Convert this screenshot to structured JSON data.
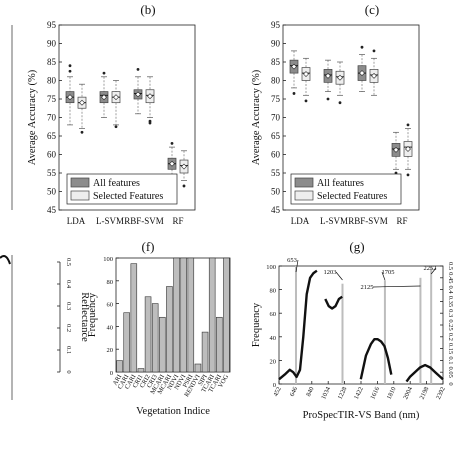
{
  "panels": {
    "b": "(b)",
    "c": "(c)",
    "f": "(f)",
    "g": "(g)"
  },
  "chart_data": [
    {
      "type": "box",
      "panel": "(b)",
      "ylabel": "Average Accuracy (%)",
      "ylim": [
        45,
        95
      ],
      "yticks": [
        "45",
        "50",
        "55",
        "60",
        "65",
        "70",
        "75",
        "80",
        "85",
        "90",
        "95"
      ],
      "categories": [
        "LDA",
        "L-SVM",
        "RBF-SVM",
        "RF"
      ],
      "legend": [
        "All features",
        "Selected Features"
      ],
      "series": [
        {
          "name": "All features",
          "color": "#8c8c8c",
          "boxes": [
            {
              "min": 68,
              "q1": 74,
              "median": 75.5,
              "q3": 77,
              "max": 81,
              "outliers": [
                82.5,
                84
              ]
            },
            {
              "min": 70,
              "q1": 74,
              "median": 76,
              "q3": 77,
              "max": 81,
              "outliers": [
                82
              ]
            },
            {
              "min": 71,
              "q1": 75,
              "median": 76.5,
              "q3": 77.5,
              "max": 81,
              "outliers": [
                83
              ]
            },
            {
              "min": 54,
              "q1": 56,
              "median": 57.5,
              "q3": 59,
              "max": 62,
              "outliers": [
                63
              ]
            }
          ]
        },
        {
          "name": "Selected Features",
          "color": "#eeeeee",
          "boxes": [
            {
              "min": 67,
              "q1": 72.5,
              "median": 74,
              "q3": 75.5,
              "max": 79,
              "outliers": [
                66
              ]
            },
            {
              "min": 68,
              "q1": 74,
              "median": 75.5,
              "q3": 77,
              "max": 80,
              "outliers": [
                67.5
              ]
            },
            {
              "min": 70,
              "q1": 74,
              "median": 76,
              "q3": 77.5,
              "max": 81,
              "outliers": [
                69,
                68.5
              ]
            },
            {
              "min": 53,
              "q1": 55,
              "median": 57,
              "q3": 58.5,
              "max": 61,
              "outliers": [
                51.5
              ]
            }
          ]
        }
      ]
    },
    {
      "type": "box",
      "panel": "(c)",
      "ylabel": "Average Accuracy (%)",
      "ylim": [
        45,
        95
      ],
      "yticks": [
        "45",
        "50",
        "55",
        "60",
        "65",
        "70",
        "75",
        "80",
        "85",
        "90",
        "95"
      ],
      "categories": [
        "LDA",
        "L-SVM",
        "RBF-SVM",
        "RF"
      ],
      "legend": [
        "All features",
        "Selected Features"
      ],
      "series": [
        {
          "name": "All features",
          "color": "#8c8c8c",
          "boxes": [
            {
              "min": 78,
              "q1": 82,
              "median": 84,
              "q3": 85.5,
              "max": 88,
              "outliers": [
                76.5
              ]
            },
            {
              "min": 77,
              "q1": 79.5,
              "median": 81.5,
              "q3": 83,
              "max": 85.5,
              "outliers": [
                75
              ]
            },
            {
              "min": 77,
              "q1": 80,
              "median": 82,
              "q3": 84,
              "max": 87,
              "outliers": [
                89
              ]
            },
            {
              "min": 56,
              "q1": 59.5,
              "median": 61.5,
              "q3": 63,
              "max": 66,
              "outliers": [
                55
              ]
            }
          ]
        },
        {
          "name": "Selected Features",
          "color": "#eeeeee",
          "boxes": [
            {
              "min": 76,
              "q1": 80,
              "median": 82,
              "q3": 83.5,
              "max": 86,
              "outliers": [
                74.5
              ]
            },
            {
              "min": 76,
              "q1": 79,
              "median": 81,
              "q3": 82.5,
              "max": 85,
              "outliers": [
                74
              ]
            },
            {
              "min": 76,
              "q1": 79.5,
              "median": 81.5,
              "q3": 83,
              "max": 86,
              "outliers": [
                88
              ]
            },
            {
              "min": 56,
              "q1": 59.5,
              "median": 62,
              "q3": 63.5,
              "max": 67,
              "outliers": [
                68,
                54.5
              ]
            }
          ]
        }
      ]
    },
    {
      "type": "bar",
      "panel": "(f)",
      "xlabel": "Vegetation Indice",
      "ylabel": "Frequency",
      "ylim": [
        0,
        100
      ],
      "yticks": [
        "0",
        "20",
        "40",
        "60",
        "80",
        "100"
      ],
      "categories": [
        "ARI",
        "CARI",
        "CARI",
        "CRI1",
        "CRI2",
        "CRI3",
        "MCARI",
        "MCARI",
        "NDVI",
        "NDVI",
        "PSRI",
        "RENDVI",
        "SIPI",
        "TCARI",
        "TCARI",
        "VOG"
      ],
      "values": [
        10,
        52,
        95,
        3,
        66,
        60,
        48,
        75,
        100,
        100,
        100,
        7,
        35,
        100,
        48,
        100
      ],
      "y2label": "Reflectance",
      "y2ticks": [
        "0",
        "0.1",
        "0.2",
        "0.3",
        "0.4",
        "0.5"
      ]
    },
    {
      "type": "line",
      "panel": "(g)",
      "xlabel": "ProSpecTIR-VS Band (nm)",
      "ylabel": "Frequency",
      "ylim": [
        0,
        100
      ],
      "yticks": [
        "0",
        "20",
        "40",
        "60",
        "80",
        "100"
      ],
      "y2ticks": [
        "0",
        "0.05",
        "0.1",
        "0.15",
        "0.2",
        "0.25",
        "0.3",
        "0.35",
        "0.4",
        "0.45",
        "0.5"
      ],
      "xticks": [
        "452",
        "646",
        "840",
        "1034",
        "1228",
        "1422",
        "1616",
        "1810",
        "2004",
        "2198",
        "2392"
      ],
      "xlim": [
        452,
        2392
      ],
      "annotations": [
        "653",
        "1203",
        "1705",
        "2125",
        "2252"
      ],
      "spikes": [
        {
          "x": 653,
          "y": 100
        },
        {
          "x": 1203,
          "y": 85
        },
        {
          "x": 1705,
          "y": 88
        },
        {
          "x": 2125,
          "y": 90
        },
        {
          "x": 2252,
          "y": 100
        }
      ],
      "reflectance": [
        [
          [
            452,
            0.02
          ],
          [
            520,
            0.04
          ],
          [
            580,
            0.06
          ],
          [
            620,
            0.05
          ],
          [
            660,
            0.03
          ],
          [
            700,
            0.06
          ],
          [
            740,
            0.2
          ],
          [
            780,
            0.38
          ],
          [
            820,
            0.45
          ],
          [
            860,
            0.47
          ],
          [
            900,
            0.48
          ]
        ],
        [
          [
            1000,
            0.36
          ],
          [
            1040,
            0.33
          ],
          [
            1080,
            0.32
          ],
          [
            1120,
            0.33
          ],
          [
            1160,
            0.36
          ],
          [
            1200,
            0.37
          ]
        ],
        [
          [
            1420,
            0.02
          ],
          [
            1480,
            0.12
          ],
          [
            1540,
            0.17
          ],
          [
            1580,
            0.19
          ],
          [
            1620,
            0.19
          ],
          [
            1660,
            0.18
          ],
          [
            1700,
            0.16
          ],
          [
            1740,
            0.11
          ],
          [
            1780,
            0.04
          ]
        ],
        [
          [
            1960,
            0.01
          ],
          [
            2000,
            0.03
          ],
          [
            2060,
            0.05
          ],
          [
            2120,
            0.07
          ],
          [
            2180,
            0.08
          ],
          [
            2240,
            0.07
          ],
          [
            2300,
            0.05
          ],
          [
            2360,
            0.03
          ],
          [
            2392,
            0.02
          ]
        ]
      ]
    }
  ]
}
